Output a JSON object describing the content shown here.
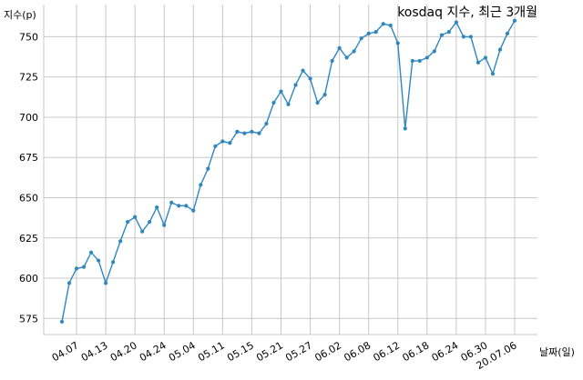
{
  "chart_data": {
    "type": "line",
    "title": "kosdaq 지수, 최근 3개월",
    "ylabel": "지수(p)",
    "xlabel": "날짜(일)",
    "grid": true,
    "ylim": [
      565,
      770
    ],
    "y_ticks": [
      575,
      600,
      625,
      650,
      675,
      700,
      725,
      750
    ],
    "x_tick_labels": [
      "04.07",
      "04.13",
      "04.20",
      "04.24",
      "05.04",
      "05.11",
      "05.15",
      "05.21",
      "05.27",
      "06.02",
      "06.08",
      "06.12",
      "06.18",
      "06.24",
      "06.30",
      "20.07.06"
    ],
    "x_tick_positions": [
      2,
      6,
      10,
      14,
      18,
      22,
      26,
      30,
      34,
      38,
      42,
      46,
      50,
      54,
      58,
      62
    ],
    "series": [
      {
        "color": "#2e86c1",
        "values": [
          573,
          597,
          606,
          607,
          616,
          611,
          597,
          610,
          623,
          635,
          638,
          629,
          635,
          644,
          633,
          647,
          645,
          645,
          642,
          658,
          668,
          682,
          685,
          684,
          691,
          690,
          691,
          690,
          696,
          709,
          716,
          708,
          720,
          729,
          724,
          709,
          714,
          735,
          743,
          737,
          741,
          749,
          752,
          753,
          758,
          757,
          746,
          693,
          735,
          735,
          737,
          741,
          751,
          753,
          759,
          750,
          750,
          734,
          737,
          727,
          742,
          752,
          760
        ]
      }
    ]
  }
}
